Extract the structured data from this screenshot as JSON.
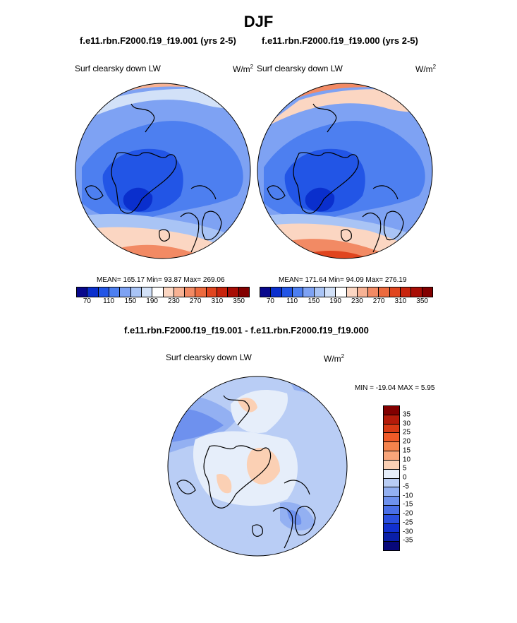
{
  "season": "DJF",
  "case_a_title": "f.e11.rbn.F2000.f19_f19.001 (yrs 2-5)",
  "case_b_title": "f.e11.rbn.F2000.f19_f19.000 (yrs 2-5)",
  "diff_title": "f.e11.rbn.F2000.f19_f19.001 - f.e11.rbn.F2000.f19_f19.000",
  "panels": [
    {
      "label": "Surf clearsky down LW",
      "units_base": "W/m",
      "units_exp": "2",
      "stats": "MEAN= 165.17  Min=  93.87  Max= 269.06"
    },
    {
      "label": "Surf clearsky down LW",
      "units_base": "W/m",
      "units_exp": "2",
      "stats": "MEAN= 171.64  Min=  94.09  Max= 276.19"
    },
    {
      "label": "Surf clearsky down LW",
      "units_base": "W/m",
      "units_exp": "2",
      "stats": "MIN = -19.04 MAX =   5.95"
    }
  ],
  "colorbar_abs": {
    "colors": [
      "#08088c",
      "#0a2fcd",
      "#2255e6",
      "#4d7ff0",
      "#7ea2f3",
      "#a9c4f5",
      "#d2e1f8",
      "#ffffff",
      "#fbd6c2",
      "#f7b294",
      "#f28a64",
      "#ec6a3e",
      "#e0451f",
      "#c8240d",
      "#a80d05",
      "#820000"
    ],
    "tick_labels": [
      "70",
      "110",
      "150",
      "190",
      "230",
      "270",
      "310",
      "350"
    ]
  },
  "colorbar_diff": {
    "colors": [
      "#820000",
      "#b41b0a",
      "#d83a15",
      "#f05a28",
      "#f5834c",
      "#f8a57a",
      "#fbd0b4",
      "#e6eefa",
      "#b9cdf5",
      "#93b0f2",
      "#6e91ee",
      "#4a6fe8",
      "#2b4fe0",
      "#1230d0",
      "#0a1fa8",
      "#08087a"
    ],
    "tick_labels": [
      "35",
      "30",
      "25",
      "20",
      "15",
      "10",
      "5",
      "0",
      "-5",
      "-10",
      "-15",
      "-20",
      "-25",
      "-30",
      "-35"
    ]
  }
}
